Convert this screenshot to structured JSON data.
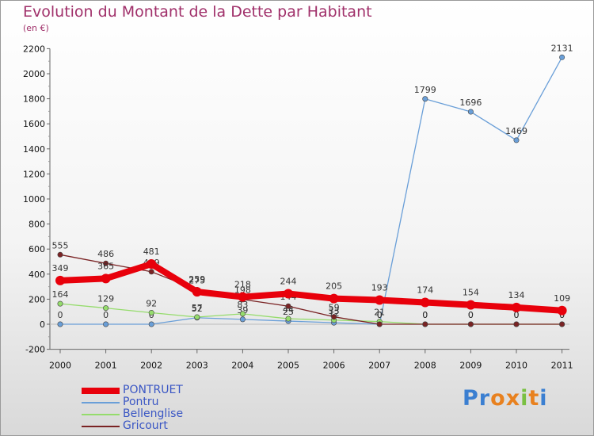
{
  "title": "Evolution du Montant de la Dette par Habitant",
  "subtitle": "(en €)",
  "logo": {
    "text": "Proxiti",
    "letters": [
      "P",
      "r",
      "o",
      "x",
      "i",
      "t",
      "i"
    ],
    "colors": [
      "#3b7fd1",
      "#3b7fd1",
      "#e8811f",
      "#e8811f",
      "#7ac043",
      "#e8811f",
      "#3b7fd1"
    ]
  },
  "chart_data": {
    "type": "line",
    "categories": [
      "2000",
      "2001",
      "2002",
      "2003",
      "2004",
      "2005",
      "2006",
      "2007",
      "2008",
      "2009",
      "2010",
      "2011"
    ],
    "ylim": [
      -200,
      2200
    ],
    "yticks": [
      -200,
      0,
      200,
      400,
      600,
      800,
      1000,
      1200,
      1400,
      1600,
      1800,
      2000,
      2200
    ],
    "grid": false,
    "legend_position": "bottom-left",
    "series": [
      {
        "name": "PONTRUET",
        "color": "#e8000b",
        "values": [
          349,
          365,
          481,
          259,
          218,
          244,
          205,
          193,
          174,
          154,
          134,
          109
        ]
      },
      {
        "name": "Pontru",
        "color": "#6a9fd8",
        "values": [
          0,
          0,
          0,
          52,
          39,
          25,
          12,
          0,
          1799,
          1696,
          1469,
          2131
        ]
      },
      {
        "name": "Bellenglise",
        "color": "#95dc6c",
        "values": [
          164,
          129,
          92,
          57,
          83,
          44,
          33,
          21,
          0,
          0,
          0,
          0
        ]
      },
      {
        "name": "Gricourt",
        "color": "#7a2324",
        "values": [
          555,
          486,
          419,
          275,
          198,
          144,
          59,
          0,
          0,
          0,
          0,
          0
        ]
      }
    ]
  }
}
